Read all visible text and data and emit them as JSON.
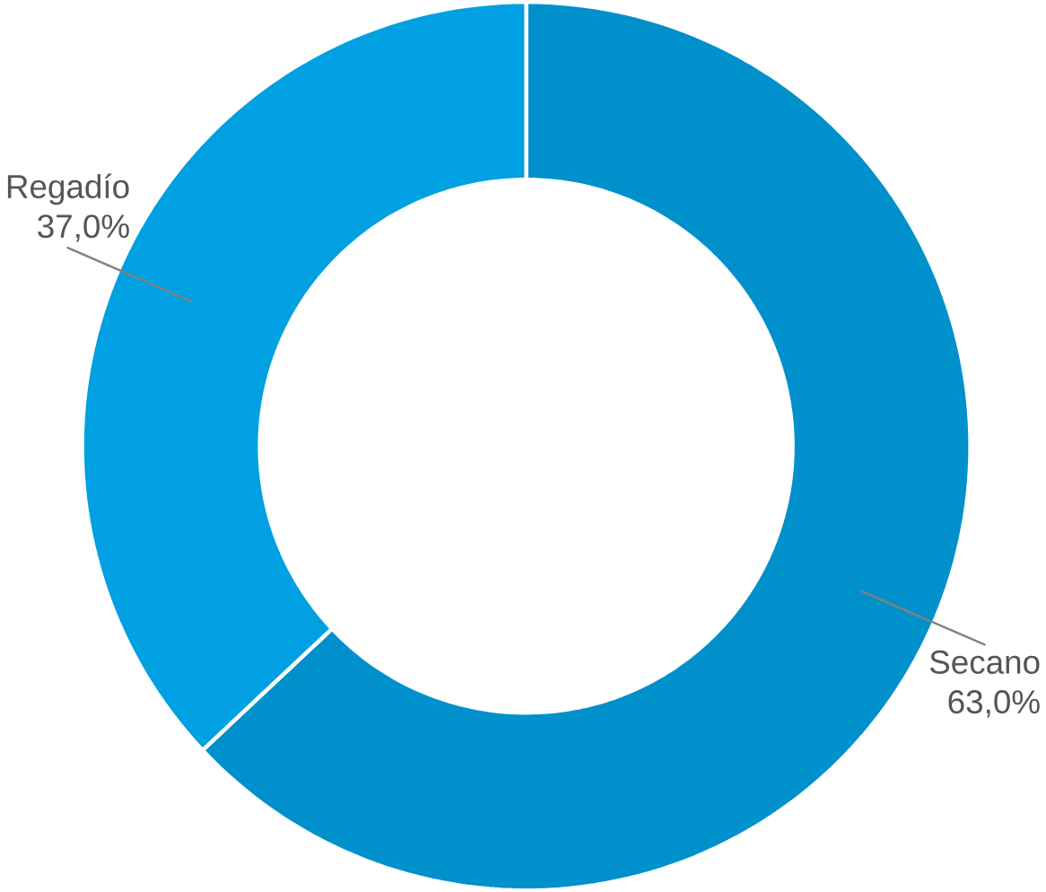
{
  "chart_data": {
    "type": "donut",
    "categories": [
      "Secano",
      "Regadío"
    ],
    "values": [
      63.0,
      37.0
    ],
    "colors": [
      "#0091cc",
      "#00a0e2"
    ],
    "value_labels": [
      "63,0%",
      "37,0%"
    ]
  }
}
